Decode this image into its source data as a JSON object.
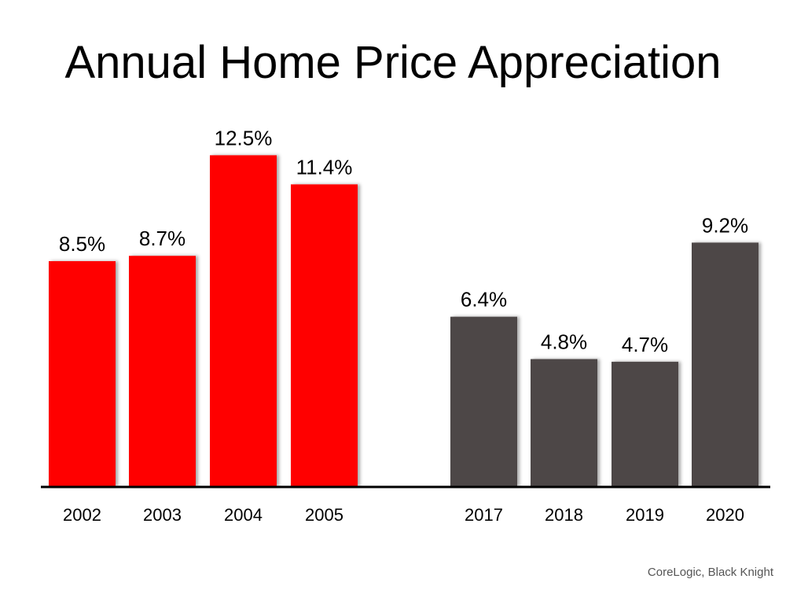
{
  "chart_data": {
    "type": "bar",
    "title": "Annual Home Price Appreciation",
    "source": "CoreLogic, Black Knight",
    "ylim": [
      0,
      14.5
    ],
    "grid": false,
    "legend": "none",
    "colors": {
      "early": "#ff0000",
      "recent": "#4d4646",
      "axis": "#000000"
    },
    "categories": [
      "2002",
      "2003",
      "2004",
      "2005",
      "2017",
      "2018",
      "2019",
      "2020"
    ],
    "values": [
      8.5,
      8.7,
      12.5,
      11.4,
      6.4,
      4.8,
      4.7,
      9.2
    ],
    "value_labels": [
      "8.5%",
      "8.7%",
      "12.5%",
      "11.4%",
      "6.4%",
      "4.8%",
      "4.7%",
      "9.2%"
    ],
    "groups": [
      "early",
      "early",
      "early",
      "early",
      "recent",
      "recent",
      "recent",
      "recent"
    ]
  }
}
